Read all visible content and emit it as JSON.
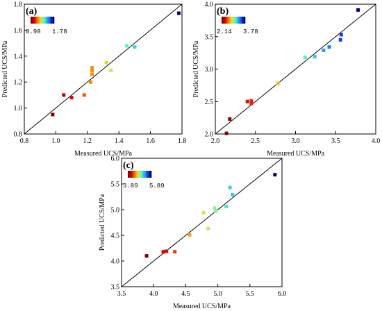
{
  "chart_data": [
    {
      "type": "scatter",
      "panel_label": "(a)",
      "xlabel": "Measured UCS/MPa",
      "ylabel": "Predicted UCS/MPa",
      "xlim": [
        0.8,
        1.8
      ],
      "ylim": [
        0.8,
        1.8
      ],
      "xticks": [
        "0.8",
        "1.0",
        "1.2",
        "1.4",
        "1.6",
        "1.8"
      ],
      "yticks": [
        "0.8",
        "1.0",
        "1.2",
        "1.4",
        "1.6",
        "1.8"
      ],
      "reference_line": "y = x",
      "colorbar": {
        "min": "0.98",
        "max": "1.78",
        "placement": "top-left"
      },
      "points": [
        {
          "x": 0.98,
          "y": 0.95
        },
        {
          "x": 1.05,
          "y": 1.1
        },
        {
          "x": 1.1,
          "y": 1.08
        },
        {
          "x": 1.18,
          "y": 1.1
        },
        {
          "x": 1.22,
          "y": 1.2
        },
        {
          "x": 1.23,
          "y": 1.26
        },
        {
          "x": 1.23,
          "y": 1.29
        },
        {
          "x": 1.23,
          "y": 1.31
        },
        {
          "x": 1.32,
          "y": 1.35
        },
        {
          "x": 1.35,
          "y": 1.29
        },
        {
          "x": 1.45,
          "y": 1.48
        },
        {
          "x": 1.5,
          "y": 1.47
        },
        {
          "x": 1.78,
          "y": 1.73
        }
      ]
    },
    {
      "type": "scatter",
      "panel_label": "(b)",
      "xlabel": "Measured UCS/MPa",
      "ylabel": "Predicted UCS/MPa",
      "xlim": [
        2.0,
        4.0
      ],
      "ylim": [
        2.0,
        4.0
      ],
      "xticks": [
        "2.0",
        "2.5",
        "3.0",
        "3.5",
        "4.0"
      ],
      "yticks": [
        "2.0",
        "2.5",
        "3.0",
        "3.5",
        "4.0"
      ],
      "reference_line": "y = x",
      "colorbar": {
        "min": "2.14",
        "max": "3.78",
        "placement": "top-left"
      },
      "points": [
        {
          "x": 2.14,
          "y": 2.01
        },
        {
          "x": 2.18,
          "y": 2.23
        },
        {
          "x": 2.4,
          "y": 2.5
        },
        {
          "x": 2.45,
          "y": 2.47
        },
        {
          "x": 2.45,
          "y": 2.51
        },
        {
          "x": 2.78,
          "y": 2.78
        },
        {
          "x": 3.12,
          "y": 3.18
        },
        {
          "x": 3.24,
          "y": 3.19
        },
        {
          "x": 3.35,
          "y": 3.29
        },
        {
          "x": 3.42,
          "y": 3.34
        },
        {
          "x": 3.56,
          "y": 3.45
        },
        {
          "x": 3.57,
          "y": 3.53
        },
        {
          "x": 3.78,
          "y": 3.91
        }
      ]
    },
    {
      "type": "scatter",
      "panel_label": "(c)",
      "xlabel": "Measured UCS/MPa",
      "ylabel": "Predicted UCS/MPa",
      "xlim": [
        3.5,
        6.0
      ],
      "ylim": [
        3.5,
        6.0
      ],
      "xticks": [
        "3.5",
        "4.0",
        "4.5",
        "5.0",
        "5.5",
        "6.0"
      ],
      "yticks": [
        "3.5",
        "4.0",
        "4.5",
        "5.0",
        "5.5",
        "6.0"
      ],
      "reference_line": "y = x",
      "colorbar": {
        "min": "3.89",
        "max": "5.89",
        "placement": "top-left"
      },
      "points": [
        {
          "x": 3.89,
          "y": 4.1
        },
        {
          "x": 4.15,
          "y": 4.18
        },
        {
          "x": 4.2,
          "y": 4.19
        },
        {
          "x": 4.33,
          "y": 4.18
        },
        {
          "x": 4.56,
          "y": 4.51
        },
        {
          "x": 4.78,
          "y": 4.94
        },
        {
          "x": 4.85,
          "y": 4.63
        },
        {
          "x": 4.95,
          "y": 5.03
        },
        {
          "x": 4.97,
          "y": 4.97
        },
        {
          "x": 5.13,
          "y": 5.06
        },
        {
          "x": 5.19,
          "y": 5.43
        },
        {
          "x": 5.23,
          "y": 5.29
        },
        {
          "x": 5.89,
          "y": 5.68
        }
      ]
    }
  ]
}
